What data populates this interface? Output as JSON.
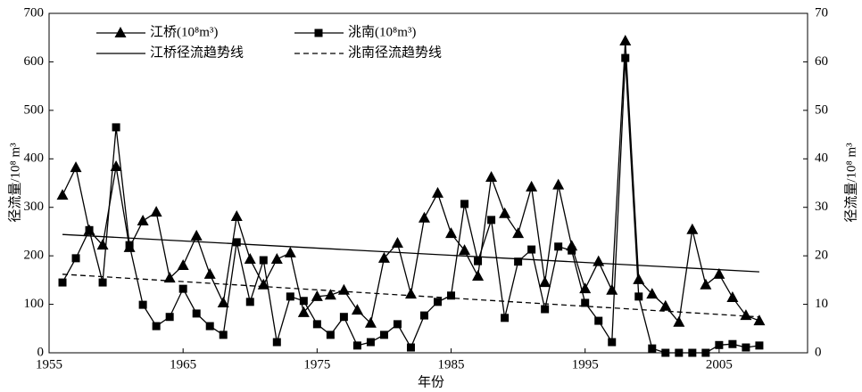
{
  "chart_data": {
    "type": "line",
    "xlabel": "年份",
    "ylabel": "径流量/10⁸ m³",
    "y2label": "径流量/10⁸ m³",
    "x": [
      1956,
      1957,
      1958,
      1959,
      1960,
      1961,
      1962,
      1963,
      1964,
      1965,
      1966,
      1967,
      1968,
      1969,
      1970,
      1971,
      1972,
      1973,
      1974,
      1975,
      1976,
      1977,
      1978,
      1979,
      1980,
      1981,
      1982,
      1983,
      1984,
      1985,
      1986,
      1987,
      1988,
      1989,
      1990,
      1991,
      1992,
      1993,
      1994,
      1995,
      1996,
      1997,
      1998,
      1999,
      2000,
      2001,
      2002,
      2003,
      2004,
      2005,
      2006,
      2007,
      2008
    ],
    "xlim": [
      1955,
      2011.6
    ],
    "xticks": [
      1955,
      1965,
      1975,
      1985,
      1995,
      2005
    ],
    "ylim": [
      0,
      700
    ],
    "yticks": [
      0,
      100,
      200,
      300,
      400,
      500,
      600,
      700
    ],
    "y2lim": [
      0,
      70
    ],
    "y2ticks": [
      0,
      10,
      20,
      30,
      40,
      50,
      60,
      70
    ],
    "series": [
      {
        "name": "江桥(10⁸m³)",
        "color": "#000000",
        "marker": "triangle",
        "axis": "y",
        "values": [
          325,
          382,
          252,
          222,
          384,
          217,
          272,
          290,
          154,
          180,
          241,
          162,
          103,
          281,
          193,
          140,
          193,
          206,
          83,
          116,
          119,
          129,
          88,
          61,
          195,
          226,
          121,
          278,
          329,
          246,
          211,
          158,
          362,
          287,
          246,
          342,
          145,
          346,
          220,
          132,
          188,
          129,
          643,
          151,
          121,
          96,
          63,
          254,
          140,
          162,
          114,
          77,
          66
        ]
      },
      {
        "name": "洮南(10⁸m³)",
        "color": "#000000",
        "marker": "square",
        "axis": "y2",
        "values": [
          14.5,
          19.5,
          25.3,
          14.5,
          46.5,
          22.2,
          9.9,
          5.5,
          7.4,
          13.2,
          8.1,
          5.5,
          3.7,
          22.8,
          10.5,
          19.1,
          2.2,
          11.6,
          10.7,
          5.9,
          3.7,
          7.4,
          1.5,
          2.2,
          3.7,
          5.9,
          1.1,
          7.7,
          10.5,
          11.8,
          30.7,
          18.9,
          27.4,
          7.2,
          18.8,
          21.3,
          9.0,
          21.9,
          21.1,
          10.3,
          6.6,
          2.2,
          60.8,
          11.6,
          0.9,
          0,
          0,
          0,
          0,
          1.6,
          1.8,
          1.1,
          1.5
        ]
      },
      {
        "name": "江桥径流趋势线",
        "color": "#000000",
        "dash": "solid",
        "axis": "y",
        "x": [
          1956,
          2008
        ],
        "values": [
          244,
          167
        ]
      },
      {
        "name": "洮南径流趋势线",
        "color": "#000000",
        "dash": "dashed",
        "axis": "y2",
        "x": [
          1956,
          2008
        ],
        "values": [
          16.2,
          7.4
        ]
      }
    ]
  }
}
